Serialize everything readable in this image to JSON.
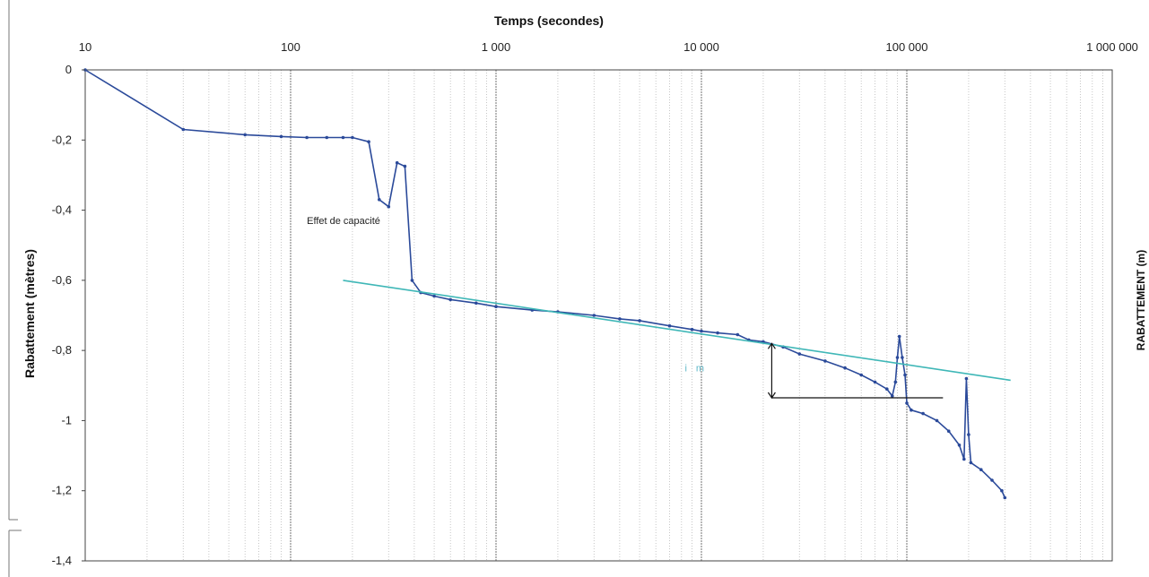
{
  "chart_data": {
    "type": "line",
    "title": "",
    "xlabel": "Temps (secondes)",
    "ylabel": "Rabattement (mètres)",
    "right_label": "RABATTEMENT (m)",
    "x_scale": "log",
    "xlim": [
      10,
      1000000
    ],
    "ylim": [
      -1.4,
      0
    ],
    "x_ticks": [
      {
        "value": 10,
        "label": "10"
      },
      {
        "value": 100,
        "label": "100"
      },
      {
        "value": 1000,
        "label": "1 000"
      },
      {
        "value": 10000,
        "label": "10 000"
      },
      {
        "value": 100000,
        "label": "100 000"
      },
      {
        "value": 1000000,
        "label": "1 000 000"
      }
    ],
    "y_ticks": [
      {
        "value": 0,
        "label": "0"
      },
      {
        "value": -0.2,
        "label": "-0,2"
      },
      {
        "value": -0.4,
        "label": "-0,4"
      },
      {
        "value": -0.6,
        "label": "-0,6"
      },
      {
        "value": -0.8,
        "label": "-0,8"
      },
      {
        "value": -1,
        "label": "-1"
      },
      {
        "value": -1.2,
        "label": "-1,2"
      },
      {
        "value": -1.4,
        "label": "-1,4"
      }
    ],
    "grid": "vertical log gridlines",
    "series": [
      {
        "color": "#2b4a9a",
        "points": [
          [
            10,
            0
          ],
          [
            30,
            -0.17
          ],
          [
            60,
            -0.185
          ],
          [
            90,
            -0.19
          ],
          [
            120,
            -0.193
          ],
          [
            150,
            -0.193
          ],
          [
            180,
            -0.193
          ],
          [
            200,
            -0.193
          ],
          [
            240,
            -0.205
          ],
          [
            270,
            -0.37
          ],
          [
            300,
            -0.39
          ],
          [
            330,
            -0.265
          ],
          [
            360,
            -0.275
          ],
          [
            390,
            -0.6
          ],
          [
            430,
            -0.635
          ],
          [
            500,
            -0.645
          ],
          [
            600,
            -0.655
          ],
          [
            800,
            -0.665
          ],
          [
            1000,
            -0.675
          ],
          [
            1500,
            -0.685
          ],
          [
            2000,
            -0.69
          ],
          [
            3000,
            -0.7
          ],
          [
            4000,
            -0.71
          ],
          [
            5000,
            -0.715
          ],
          [
            7000,
            -0.73
          ],
          [
            9000,
            -0.74
          ],
          [
            10000,
            -0.745
          ],
          [
            12000,
            -0.75
          ],
          [
            15000,
            -0.755
          ],
          [
            17000,
            -0.77
          ],
          [
            20000,
            -0.775
          ],
          [
            25000,
            -0.79
          ],
          [
            30000,
            -0.81
          ],
          [
            40000,
            -0.83
          ],
          [
            50000,
            -0.85
          ],
          [
            60000,
            -0.87
          ],
          [
            70000,
            -0.89
          ],
          [
            80000,
            -0.91
          ],
          [
            85000,
            -0.93
          ],
          [
            88000,
            -0.89
          ],
          [
            90000,
            -0.82
          ],
          [
            92000,
            -0.76
          ],
          [
            95000,
            -0.82
          ],
          [
            98000,
            -0.87
          ],
          [
            100000,
            -0.95
          ],
          [
            105000,
            -0.97
          ],
          [
            120000,
            -0.98
          ],
          [
            140000,
            -1.0
          ],
          [
            160000,
            -1.03
          ],
          [
            180000,
            -1.07
          ],
          [
            190000,
            -1.11
          ],
          [
            195000,
            -0.88
          ],
          [
            200000,
            -1.04
          ],
          [
            205000,
            -1.12
          ],
          [
            230000,
            -1.14
          ],
          [
            260000,
            -1.17
          ],
          [
            290000,
            -1.2
          ],
          [
            300000,
            -1.22
          ]
        ]
      },
      {
        "color": "#3fb7b7",
        "points": [
          [
            180,
            -0.6
          ],
          [
            320000,
            -0.885
          ]
        ]
      }
    ],
    "annotations": [
      {
        "text": "Effet de capacité",
        "x": 120,
        "y": -0.44
      },
      {
        "text": "i",
        "x": 8300,
        "y": -0.86
      },
      {
        "text": "m",
        "x": 9400,
        "y": -0.86
      }
    ],
    "guide": {
      "arrow_x": 22000,
      "arrow_from": -0.78,
      "arrow_to": -0.935,
      "line_to_x": 150000,
      "line_y": -0.935
    }
  }
}
